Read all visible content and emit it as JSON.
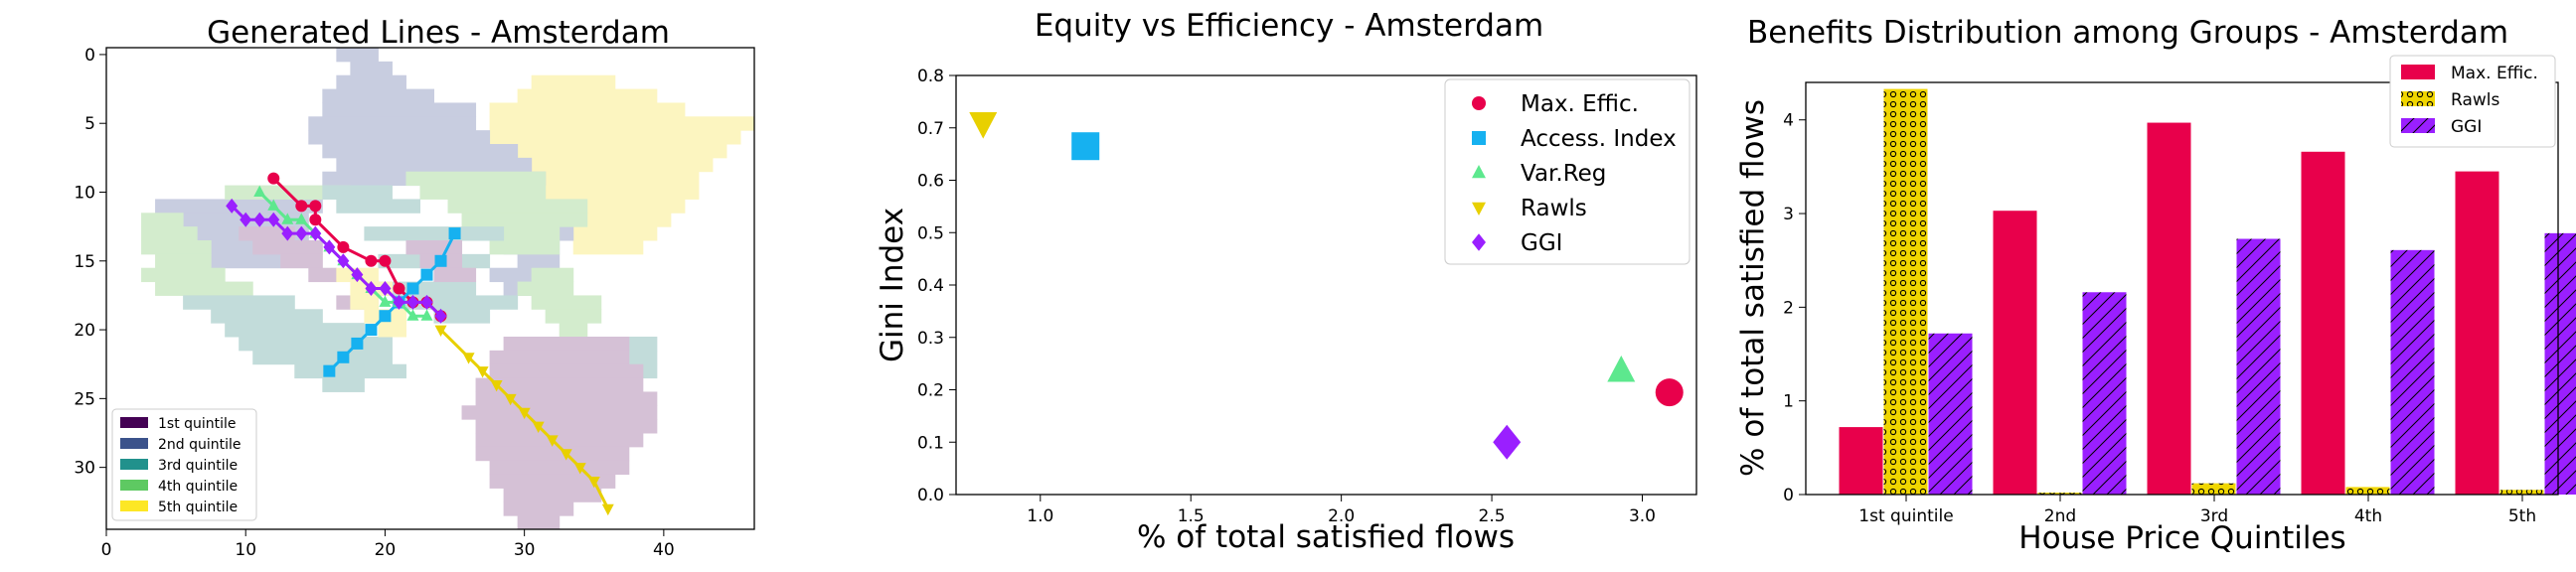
{
  "chart_data": [
    {
      "type": "scatter",
      "subtype": "grid-map-with-line-routes",
      "title": "Generated Lines - Amsterdam",
      "xlabel": "",
      "ylabel": "",
      "xlim": [
        0,
        46.5
      ],
      "ylim": [
        34.5,
        -0.5
      ],
      "y_inverted": true,
      "xticks": [
        0,
        10,
        20,
        30,
        40
      ],
      "yticks": [
        0,
        5,
        10,
        15,
        20,
        25,
        30
      ],
      "legend": {
        "placement": "lower-left",
        "entries": [
          {
            "label": "1st quintile",
            "color": "#440154"
          },
          {
            "label": "2nd quintile",
            "color": "#3b528b"
          },
          {
            "label": "3rd quintile",
            "color": "#21918c"
          },
          {
            "label": "4th quintile",
            "color": "#5ec962"
          },
          {
            "label": "5th quintile",
            "color": "#fde725"
          }
        ]
      },
      "zones": [
        {
          "quintile": 5,
          "cells": [
            [
              28,
              4,
              14,
              1
            ],
            [
              30,
              3,
              10,
              1
            ],
            [
              31,
              2,
              6,
              1
            ],
            [
              28,
              5,
              19,
              1
            ],
            [
              28,
              6,
              18,
              1
            ],
            [
              28,
              7,
              17,
              1
            ],
            [
              29,
              8,
              15,
              1
            ],
            [
              29,
              9,
              14,
              1
            ],
            [
              30,
              10,
              13,
              1
            ],
            [
              31,
              11,
              11,
              1
            ],
            [
              32,
              12,
              9,
              1
            ],
            [
              33,
              13,
              7,
              1
            ],
            [
              34,
              14,
              5,
              1
            ]
          ]
        },
        {
          "quintile": 2,
          "cells": [
            [
              17,
              0,
              3,
              1
            ],
            [
              18,
              1,
              3,
              1
            ],
            [
              17,
              2,
              5,
              1
            ],
            [
              16,
              3,
              8,
              1
            ],
            [
              16,
              4,
              11,
              1
            ],
            [
              15,
              5,
              12,
              1
            ],
            [
              15,
              6,
              13,
              1
            ],
            [
              16,
              7,
              14,
              1
            ],
            [
              17,
              8,
              14,
              1
            ],
            [
              16,
              9,
              16,
              1
            ],
            [
              4,
              11,
              12,
              1
            ],
            [
              4,
              12,
              11,
              1
            ],
            [
              5,
              13,
              10,
              1
            ],
            [
              6,
              14,
              8,
              1
            ],
            [
              7,
              15,
              6,
              1
            ],
            [
              29,
              13,
              5,
              1
            ],
            [
              29,
              14,
              4,
              1
            ],
            [
              30,
              15,
              3,
              1
            ],
            [
              28,
              16,
              4,
              1
            ],
            [
              29,
              17,
              3,
              1
            ]
          ]
        },
        {
          "quintile": 4,
          "cells": [
            [
              9,
              10,
              9,
              1
            ],
            [
              3,
              12,
              3,
              1
            ],
            [
              3,
              13,
              4,
              1
            ],
            [
              3,
              14,
              5,
              1
            ],
            [
              4,
              15,
              4,
              1
            ],
            [
              3,
              16,
              6,
              1
            ],
            [
              4,
              17,
              7,
              1
            ],
            [
              22,
              9,
              10,
              1
            ],
            [
              23,
              10,
              9,
              1
            ],
            [
              25,
              11,
              10,
              1
            ],
            [
              26,
              12,
              9,
              1
            ],
            [
              27,
              13,
              6,
              1
            ],
            [
              28,
              14,
              5,
              1
            ],
            [
              31,
              16,
              3,
              1
            ],
            [
              30,
              17,
              4,
              1
            ],
            [
              31,
              18,
              5,
              1
            ],
            [
              32,
              19,
              4,
              1
            ],
            [
              33,
              20,
              2,
              1
            ]
          ]
        },
        {
          "quintile": 3,
          "cells": [
            [
              6,
              18,
              8,
              1
            ],
            [
              8,
              19,
              8,
              1
            ],
            [
              9,
              20,
              10,
              1
            ],
            [
              10,
              21,
              11,
              1
            ],
            [
              11,
              22,
              10,
              1
            ],
            [
              14,
              23,
              8,
              1
            ],
            [
              16,
              24,
              3,
              1
            ],
            [
              19,
              13,
              10,
              1
            ],
            [
              20,
              15,
              8,
              1
            ],
            [
              20,
              17,
              7,
              1
            ],
            [
              21,
              18,
              9,
              1
            ],
            [
              24,
              19,
              4,
              1
            ],
            [
              38,
              21,
              2,
              1
            ],
            [
              38,
              22,
              2,
              1
            ],
            [
              39,
              23,
              1,
              1
            ],
            [
              16,
              10,
              5,
              1
            ],
            [
              17,
              11,
              6,
              1
            ]
          ]
        },
        {
          "quintile": 1,
          "cells": [
            [
              10,
              13,
              4,
              1
            ],
            [
              11,
              14,
              5,
              1
            ],
            [
              13,
              15,
              3,
              1
            ],
            [
              15,
              16,
              2,
              1
            ],
            [
              22,
              14,
              4,
              1
            ],
            [
              23,
              15,
              3,
              1
            ],
            [
              24,
              16,
              3,
              1
            ],
            [
              17,
              18,
              3,
              1
            ],
            [
              29,
              21,
              9,
              1
            ],
            [
              28,
              22,
              10,
              1
            ],
            [
              28,
              23,
              11,
              1
            ],
            [
              27,
              24,
              12,
              1
            ],
            [
              27,
              25,
              13,
              1
            ],
            [
              26,
              26,
              14,
              1
            ],
            [
              27,
              27,
              13,
              1
            ],
            [
              27,
              28,
              12,
              1
            ],
            [
              27,
              29,
              11,
              1
            ],
            [
              28,
              30,
              10,
              1
            ],
            [
              28,
              31,
              9,
              1
            ],
            [
              29,
              32,
              7,
              1
            ],
            [
              29,
              33,
              5,
              1
            ],
            [
              30,
              34,
              3,
              1
            ]
          ]
        },
        {
          "quintile": 5,
          "cells": [
            [
              17,
              16,
              3,
              1
            ],
            [
              18,
              17,
              3,
              1
            ],
            [
              18,
              18,
              2,
              1
            ],
            [
              19,
              19,
              3,
              1
            ],
            [
              20,
              20,
              2,
              1
            ]
          ]
        }
      ],
      "series": [
        {
          "name": "Max. Effic.",
          "color": "#e8004b",
          "marker": "circle",
          "x": [
            12,
            14,
            15,
            15,
            17,
            19,
            20,
            21,
            22,
            23,
            24
          ],
          "y": [
            9,
            11,
            11,
            12,
            14,
            15,
            15,
            17,
            18,
            18,
            19
          ]
        },
        {
          "name": "Access. Index",
          "color": "#16b1f0",
          "marker": "square",
          "x": [
            16,
            17,
            18,
            19,
            20,
            21,
            22,
            23,
            24,
            25
          ],
          "y": [
            23,
            22,
            21,
            20,
            19,
            18,
            17,
            16,
            15,
            13
          ]
        },
        {
          "name": "Var.Reg",
          "color": "#5de88e",
          "marker": "triangle-up",
          "x": [
            11,
            12,
            13,
            14,
            15,
            16,
            17,
            18,
            19,
            20,
            21,
            22,
            23
          ],
          "y": [
            10,
            11,
            12,
            12,
            13,
            14,
            15,
            16,
            17,
            18,
            18,
            19,
            19
          ]
        },
        {
          "name": "Rawls",
          "color": "#e8d000",
          "marker": "triangle-down",
          "x": [
            24,
            26,
            27,
            28,
            29,
            30,
            31,
            32,
            33,
            34,
            35,
            36
          ],
          "y": [
            20,
            22,
            23,
            24,
            25,
            26,
            27,
            28,
            29,
            30,
            31,
            33
          ]
        },
        {
          "name": "GGI",
          "color": "#9a1fff",
          "marker": "diamond",
          "x": [
            9,
            10,
            11,
            12,
            13,
            14,
            15,
            16,
            17,
            18,
            19,
            20,
            21,
            22,
            23,
            24
          ],
          "y": [
            11,
            12,
            12,
            12,
            13,
            13,
            13,
            14,
            15,
            16,
            17,
            17,
            18,
            18,
            18,
            19
          ]
        }
      ]
    },
    {
      "type": "scatter",
      "title": "Equity vs Efficiency - Amsterdam",
      "xlabel": "% of total satisfied flows",
      "ylabel": "Gini Index",
      "xlim": [
        0.72,
        3.18
      ],
      "ylim": [
        0.0,
        0.8
      ],
      "xticks": [
        "1.0",
        "1.5",
        "2.0",
        "2.5",
        "3.0"
      ],
      "yticks": [
        "0.0",
        "0.1",
        "0.2",
        "0.3",
        "0.4",
        "0.5",
        "0.6",
        "0.7",
        "0.8"
      ],
      "grid": false,
      "legend": {
        "placement": "top-right"
      },
      "series": [
        {
          "name": "Max. Effic.",
          "color": "#e8004b",
          "marker": "circle",
          "x": 3.09,
          "y": 0.195
        },
        {
          "name": "Access. Index",
          "color": "#16b1f0",
          "marker": "square",
          "x": 1.15,
          "y": 0.665
        },
        {
          "name": "Var.Reg",
          "color": "#5de88e",
          "marker": "triangle-up",
          "x": 2.93,
          "y": 0.235
        },
        {
          "name": "Rawls",
          "color": "#e8d000",
          "marker": "triangle-down",
          "x": 0.81,
          "y": 0.71
        },
        {
          "name": "GGI",
          "color": "#9a1fff",
          "marker": "diamond",
          "x": 2.55,
          "y": 0.1
        }
      ]
    },
    {
      "type": "bar",
      "title": "Benefits Distribution among Groups - Amsterdam",
      "xlabel": "House Price Quintiles",
      "ylabel": "% of total satisfied flows",
      "categories": [
        "1st quintile",
        "2nd",
        "3rd",
        "4th",
        "5th"
      ],
      "ylim": [
        0,
        4.4
      ],
      "yticks": [
        "0",
        "1",
        "2",
        "3",
        "4"
      ],
      "legend": {
        "placement": "top-right"
      },
      "series": [
        {
          "name": "Max. Effic.",
          "color": "#e8004b",
          "pattern": "solid",
          "values": [
            0.72,
            3.03,
            3.97,
            3.66,
            3.45
          ]
        },
        {
          "name": "Rawls",
          "color": "#e8d000",
          "pattern": "dots",
          "values": [
            4.33,
            0.02,
            0.12,
            0.08,
            0.05
          ]
        },
        {
          "name": "GGI",
          "color": "#9a1fff",
          "pattern": "hatch",
          "values": [
            1.72,
            2.16,
            2.73,
            2.61,
            2.79
          ]
        }
      ]
    }
  ]
}
